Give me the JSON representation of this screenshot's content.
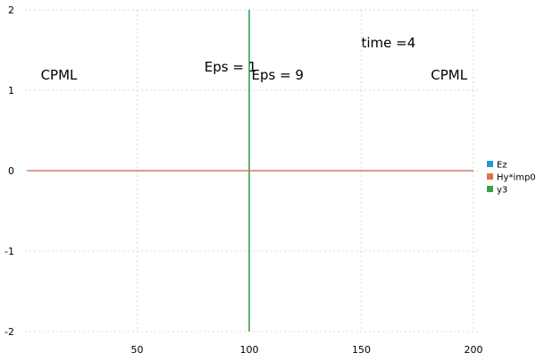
{
  "chart_data": {
    "type": "line",
    "title": "",
    "xlabel": "",
    "ylabel": "",
    "xlim": [
      0,
      202
    ],
    "ylim": [
      -2,
      2
    ],
    "x_ticks": [
      50,
      100,
      150,
      200
    ],
    "y_ticks": [
      -2,
      -1,
      0,
      1,
      2
    ],
    "grid": true,
    "legend_position": "right",
    "series": [
      {
        "name": "Ez",
        "color": "#1f9bd6",
        "x": [
          1,
          200
        ],
        "y": [
          0,
          0
        ]
      },
      {
        "name": "Hy*imp0",
        "color": "#e0734a",
        "x": [
          1,
          200
        ],
        "y": [
          0,
          0
        ]
      },
      {
        "name": "y3",
        "color": "#3a9e4a",
        "x": [
          100,
          100
        ],
        "y": [
          -2,
          2
        ]
      }
    ],
    "annotations": [
      {
        "id": "cpml-left",
        "text": "CPML",
        "x": 7,
        "y": 1.2
      },
      {
        "id": "eps-1",
        "text": "Eps = 1",
        "x": 80,
        "y": 1.3
      },
      {
        "id": "eps-9",
        "text": "Eps = 9",
        "x": 101,
        "y": 1.2
      },
      {
        "id": "time",
        "text": "time =4",
        "x": 150,
        "y": 1.6
      },
      {
        "id": "cpml-right",
        "text": "CPML",
        "x": 181,
        "y": 1.2
      }
    ]
  }
}
